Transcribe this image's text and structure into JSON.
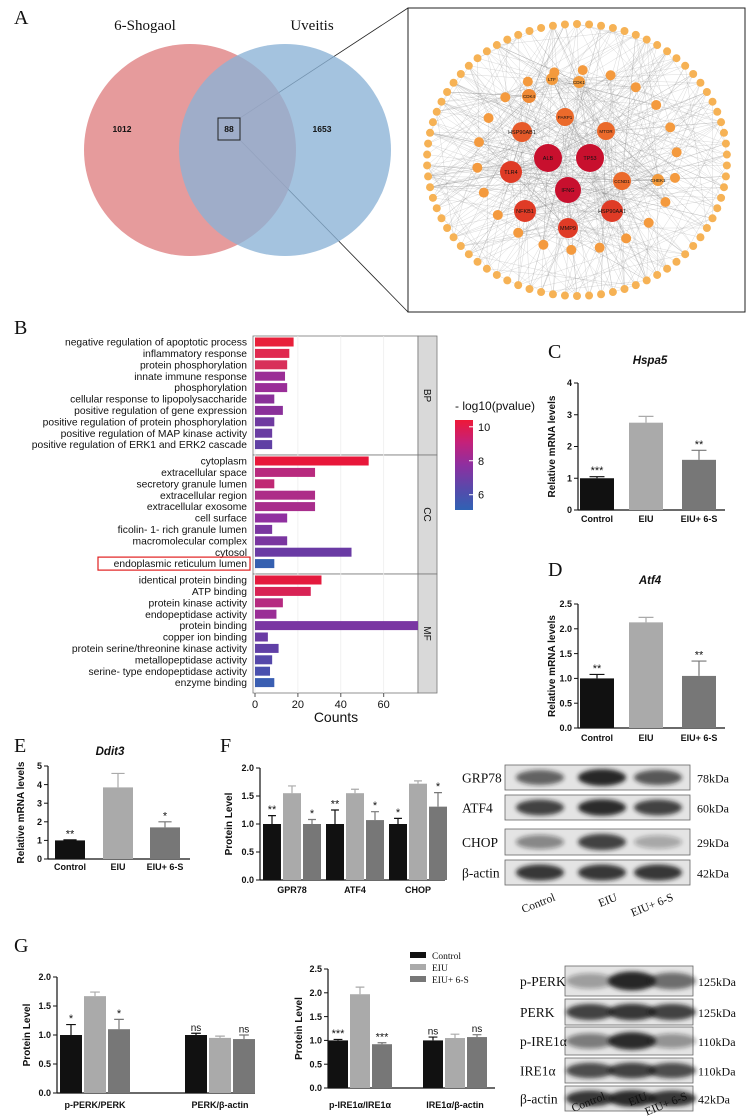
{
  "panel_labels": [
    "A",
    "B",
    "C",
    "D",
    "E",
    "F",
    "G"
  ],
  "chart_data": [
    {
      "type": "venn",
      "sets": [
        {
          "name": "6-Shogaol",
          "color": "#df7f80"
        },
        {
          "name": "Uveitis",
          "color": "#8ab2d6"
        }
      ],
      "values": [
        1012,
        88,
        1653
      ]
    },
    {
      "type": "network",
      "nodes": [
        {
          "label": "ALB",
          "color": "#c8102e"
        },
        {
          "label": "TP53",
          "color": "#c8102e"
        },
        {
          "label": "IFNG",
          "color": "#c8102e"
        },
        {
          "label": "TLR4",
          "color": "#df3b26"
        },
        {
          "label": "NFKB1",
          "color": "#df3b26"
        },
        {
          "label": "MMP9",
          "color": "#df3b26"
        },
        {
          "label": "HSP90AA1",
          "color": "#df3b26"
        },
        {
          "label": "HSP90AB1",
          "color": "#e75a2a"
        },
        {
          "label": "PARP1",
          "color": "#eb6a2b"
        },
        {
          "label": "MTOR",
          "color": "#eb6a2b"
        },
        {
          "label": "CCND1",
          "color": "#eb6a2b"
        },
        {
          "label": "CDK4",
          "color": "#f08a35"
        },
        {
          "label": "LTF",
          "color": "#f29a3c"
        },
        {
          "label": "CDK1",
          "color": "#f29a3c"
        },
        {
          "label": "CHEK1",
          "color": "#f29a3c"
        }
      ]
    },
    {
      "type": "bar",
      "orientation": "horizontal",
      "groups": [
        {
          "name": "BP",
          "categories": [
            "negative regulation of apoptotic process",
            "inflammatory response",
            "protein phosphorylation",
            "innate immune response",
            "phosphorylation",
            "cellular response to lipopolysaccharide",
            "positive regulation of gene expression",
            "positive regulation of protein phosphorylation",
            "positive regulation of MAP kinase activity",
            "positive regulation of ERK1 and ERK2 cascade"
          ],
          "values": [
            18,
            16,
            15,
            14,
            15,
            9,
            13,
            9,
            8,
            8
          ],
          "colors": [
            "#e8203a",
            "#e02a50",
            "#d8305a",
            "#9b2e96",
            "#9a2e98",
            "#8a3099",
            "#8a309a",
            "#6f3aa0",
            "#6a3da2",
            "#6040a4"
          ]
        },
        {
          "name": "CC",
          "categories": [
            "cytoplasm",
            "extracellular space",
            "secretory granule lumen",
            "extracellular region",
            "extracellular exosome",
            "cell surface",
            "ficolin- 1- rich granule lumen",
            "macromolecular complex",
            "cytosol",
            "endoplasmic reticulum lumen"
          ],
          "values": [
            53,
            28,
            9,
            28,
            28,
            15,
            8,
            15,
            45,
            9
          ],
          "colors": [
            "#e8173a",
            "#b82a7e",
            "#c02874",
            "#ad2d88",
            "#a82e8c",
            "#9030a0",
            "#7a36a0",
            "#7a36a0",
            "#6a3ba4",
            "#3560b0"
          ]
        },
        {
          "name": "MF",
          "categories": [
            "identical protein binding",
            "ATP binding",
            "protein kinase activity",
            "endopeptidase activity",
            "protein binding",
            "copper ion binding",
            "protein serine/threonine kinase activity",
            "metallopeptidase activity",
            "serine- type endopeptidase activity",
            "enzyme binding"
          ],
          "values": [
            31,
            26,
            13,
            10,
            76,
            6,
            11,
            8,
            7,
            9
          ],
          "colors": [
            "#e41a3e",
            "#d82355",
            "#b62a80",
            "#9a2e96",
            "#7a36a2",
            "#6a3ba4",
            "#6040a6",
            "#5548aa",
            "#4a50ae",
            "#3a5eb2"
          ]
        }
      ],
      "xlabel": "Counts",
      "xlim": [
        0,
        76
      ],
      "xticks": [
        0,
        20,
        40,
        60
      ],
      "grid": true,
      "highlight": {
        "group": 1,
        "index": 9,
        "color": "#e02020"
      },
      "colorbar": {
        "title": "- log10(pvalue)",
        "colors": [
          "#ee1838",
          "#c4217a",
          "#8e2fa0",
          "#5a48aa",
          "#2f62b4"
        ],
        "lim": [
          5.1,
          10.4
        ],
        "ticks": [
          6,
          8,
          10
        ]
      }
    },
    {
      "type": "bar",
      "title": "Hspa5",
      "ylabel": "Relative mRNA levels",
      "categories": [
        "Control",
        "EIU",
        "EIU+ 6-S"
      ],
      "values": [
        1.0,
        2.75,
        1.58
      ],
      "errors": [
        0.05,
        0.2,
        0.3
      ],
      "significance": [
        "***",
        null,
        "**"
      ],
      "colors": [
        "#111111",
        "#aaaaaa",
        "#777777"
      ],
      "ylim": [
        0,
        4
      ],
      "yticks": [
        0,
        1,
        2,
        3,
        4
      ]
    },
    {
      "type": "bar",
      "title": "Atf4",
      "ylabel": "Relative mRNA levels",
      "categories": [
        "Control",
        "EIU",
        "EIU+ 6-S"
      ],
      "values": [
        1.0,
        2.13,
        1.05
      ],
      "errors": [
        0.08,
        0.1,
        0.3
      ],
      "significance": [
        "**",
        null,
        "**"
      ],
      "colors": [
        "#111111",
        "#aaaaaa",
        "#777777"
      ],
      "ylim": [
        0,
        2.5
      ],
      "yticks": [
        {
          "value": 0,
          "label": "0.0"
        },
        0.5,
        {
          "value": 1,
          "label": "1.0"
        },
        1.5,
        {
          "value": 2,
          "label": "2.0"
        },
        2.5
      ]
    },
    {
      "type": "bar",
      "title": "Ddit3",
      "ylabel": "Relative mRNA levels",
      "categories": [
        "Control",
        "EIU",
        "EIU+ 6-S"
      ],
      "values": [
        1.0,
        3.85,
        1.7
      ],
      "errors": [
        0.03,
        0.75,
        0.3
      ],
      "significance": [
        "**",
        null,
        "*"
      ],
      "colors": [
        "#111111",
        "#aaaaaa",
        "#777777"
      ],
      "ylim": [
        0,
        5
      ],
      "yticks": [
        0,
        1,
        2,
        3,
        4,
        5
      ]
    },
    {
      "type": "grouped_bar",
      "ylabel": "Protein Level",
      "categories": [
        "GPR78",
        "ATF4",
        "CHOP"
      ],
      "series": [
        {
          "color": "#111111",
          "values": [
            1.0,
            1.0,
            1.0
          ],
          "errors": [
            0.15,
            0.25,
            0.1
          ],
          "significance": [
            "**",
            "**",
            "*"
          ]
        },
        {
          "color": "#aaaaaa",
          "values": [
            1.55,
            1.55,
            1.72
          ],
          "errors": [
            0.13,
            0.07,
            0.05
          ],
          "significance": [
            null,
            null,
            null
          ]
        },
        {
          "color": "#777777",
          "values": [
            1.0,
            1.07,
            1.31
          ],
          "errors": [
            0.08,
            0.15,
            0.25
          ],
          "significance": [
            "*",
            "*",
            "*"
          ]
        }
      ],
      "ylim": [
        0,
        2
      ],
      "yticks": [
        {
          "value": 0,
          "label": "0.0"
        },
        0.5,
        {
          "value": 1,
          "label": "1.0"
        },
        1.5,
        {
          "value": 2,
          "label": "2.0"
        }
      ]
    },
    {
      "type": "grouped_bar",
      "ylabel": "Protein  Level",
      "categories": [
        "p-PERK/PERK",
        "PERK/β-actin"
      ],
      "series": [
        {
          "color": "#111111",
          "values": [
            1.0,
            1.0
          ],
          "errors": [
            0.18,
            0.03
          ],
          "significance": [
            "*",
            "ns"
          ]
        },
        {
          "color": "#aaaaaa",
          "values": [
            1.67,
            0.95
          ],
          "errors": [
            0.07,
            0.03
          ],
          "significance": [
            null,
            null
          ]
        },
        {
          "color": "#777777",
          "values": [
            1.1,
            0.93
          ],
          "errors": [
            0.17,
            0.07
          ],
          "significance": [
            "*",
            "ns"
          ]
        }
      ],
      "ylim": [
        0,
        2
      ],
      "yticks": [
        {
          "value": 0,
          "label": "0.0"
        },
        0.5,
        {
          "value": 1,
          "label": "1.0"
        },
        1.5,
        {
          "value": 2,
          "label": "2.0"
        }
      ]
    },
    {
      "type": "grouped_bar",
      "ylabel": "Protein  Level",
      "legend": true,
      "categories": [
        "p-IRE1α/IRE1α",
        "IRE1α/β-actin"
      ],
      "series": [
        {
          "name": "Control",
          "color": "#111111",
          "values": [
            1.0,
            1.0
          ],
          "errors": [
            0.02,
            0.07
          ],
          "significance": [
            "***",
            "ns"
          ]
        },
        {
          "name": "EIU",
          "color": "#aaaaaa",
          "values": [
            1.97,
            1.05
          ],
          "errors": [
            0.15,
            0.08
          ],
          "significance": [
            null,
            null
          ]
        },
        {
          "name": "EIU+ 6-S",
          "color": "#777777",
          "values": [
            0.92,
            1.07
          ],
          "errors": [
            0.03,
            0.05
          ],
          "significance": [
            "***",
            "ns"
          ]
        }
      ],
      "ylim": [
        0,
        2.5
      ],
      "yticks": [
        {
          "value": 0,
          "label": "0.0"
        },
        0.5,
        {
          "value": 1,
          "label": "1.0"
        },
        1.5,
        {
          "value": 2,
          "label": "2.0"
        },
        2.5
      ]
    }
  ],
  "blots": [
    {
      "rows": [
        {
          "label": "GRP78",
          "size": "78kDa"
        },
        {
          "label": "ATF4",
          "size": "60kDa"
        },
        {
          "label": "CHOP",
          "size": "29kDa"
        },
        {
          "label": "β-actin",
          "size": "42kDa"
        }
      ],
      "lanes": [
        "Control",
        "EIU",
        "EIU+ 6-S"
      ]
    },
    {
      "rows": [
        {
          "label": "p-PERK",
          "size": "125kDa"
        },
        {
          "label": "PERK",
          "size": "125kDa"
        },
        {
          "label": "p-IRE1α",
          "size": "110kDa"
        },
        {
          "label": "IRE1α",
          "size": "110kDa"
        },
        {
          "label": "β-actin",
          "size": "42kDa"
        }
      ],
      "lanes": [
        "Control",
        "EIU",
        "EIU+ 6-S"
      ]
    }
  ]
}
